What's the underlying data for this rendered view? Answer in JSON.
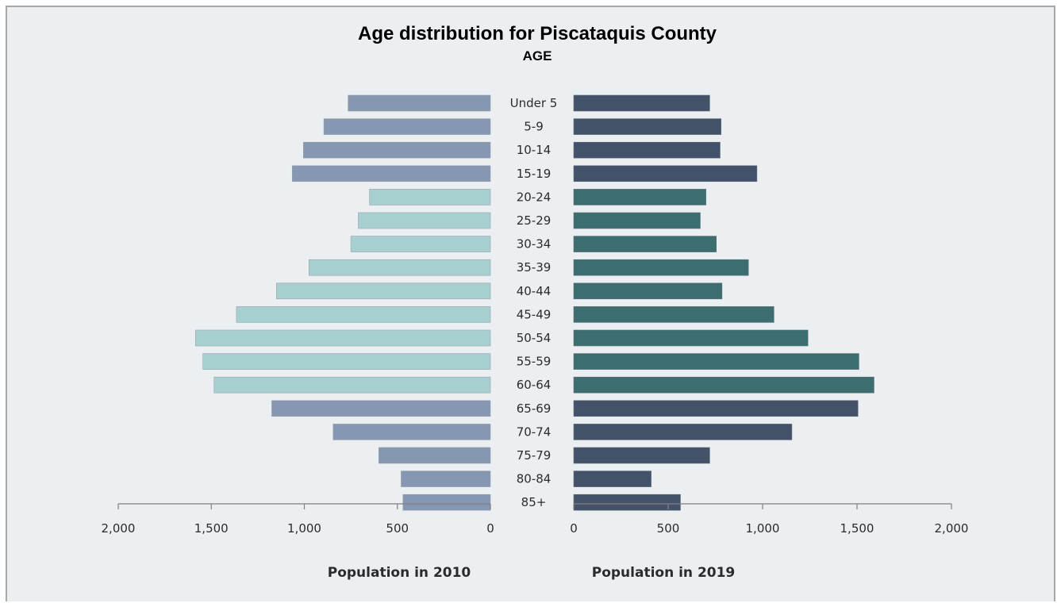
{
  "chart_data": {
    "type": "bar",
    "orientation": "horizontal-butterfly",
    "title": "Age distribution for Piscataquis County",
    "subtitle": "AGE",
    "categories": [
      "Under 5",
      "5-9",
      "10-14",
      "15-19",
      "20-24",
      "25-29",
      "30-34",
      "35-39",
      "40-44",
      "45-49",
      "50-54",
      "55-59",
      "60-64",
      "65-69",
      "70-74",
      "75-79",
      "80-84",
      "85+"
    ],
    "series": [
      {
        "name": "Population in 2010",
        "side": "left",
        "values": [
          765,
          895,
          1005,
          1065,
          650,
          710,
          750,
          975,
          1150,
          1365,
          1585,
          1545,
          1485,
          1175,
          845,
          600,
          480,
          470
        ]
      },
      {
        "name": "Population in 2019",
        "side": "right",
        "values": [
          720,
          780,
          775,
          970,
          700,
          670,
          755,
          925,
          785,
          1060,
          1240,
          1510,
          1590,
          1505,
          1155,
          720,
          410,
          565
        ]
      }
    ],
    "xlim": [
      0,
      2000
    ],
    "x_ticks": [
      0,
      500,
      1000,
      1500,
      2000
    ],
    "x_tick_labels_left": [
      "2,000",
      "1,500",
      "1,000",
      "500",
      "0"
    ],
    "x_tick_labels_right": [
      "0",
      "500",
      "1,000",
      "1,500",
      "2,000"
    ],
    "xlabel_left": "Population in 2010",
    "xlabel_right": "Population in 2019",
    "grid": false,
    "colors": {
      "background": "#ebeff2",
      "left_group_outer": "#8697b2",
      "left_group_inner": "#a8cfd0",
      "right_group_outer": "#445269",
      "right_group_inner": "#3c6e6f",
      "axis": "#808080"
    },
    "inner_group_categories": [
      "20-24",
      "25-29",
      "30-34",
      "35-39",
      "40-44",
      "45-49",
      "50-54",
      "55-59",
      "60-64"
    ]
  }
}
